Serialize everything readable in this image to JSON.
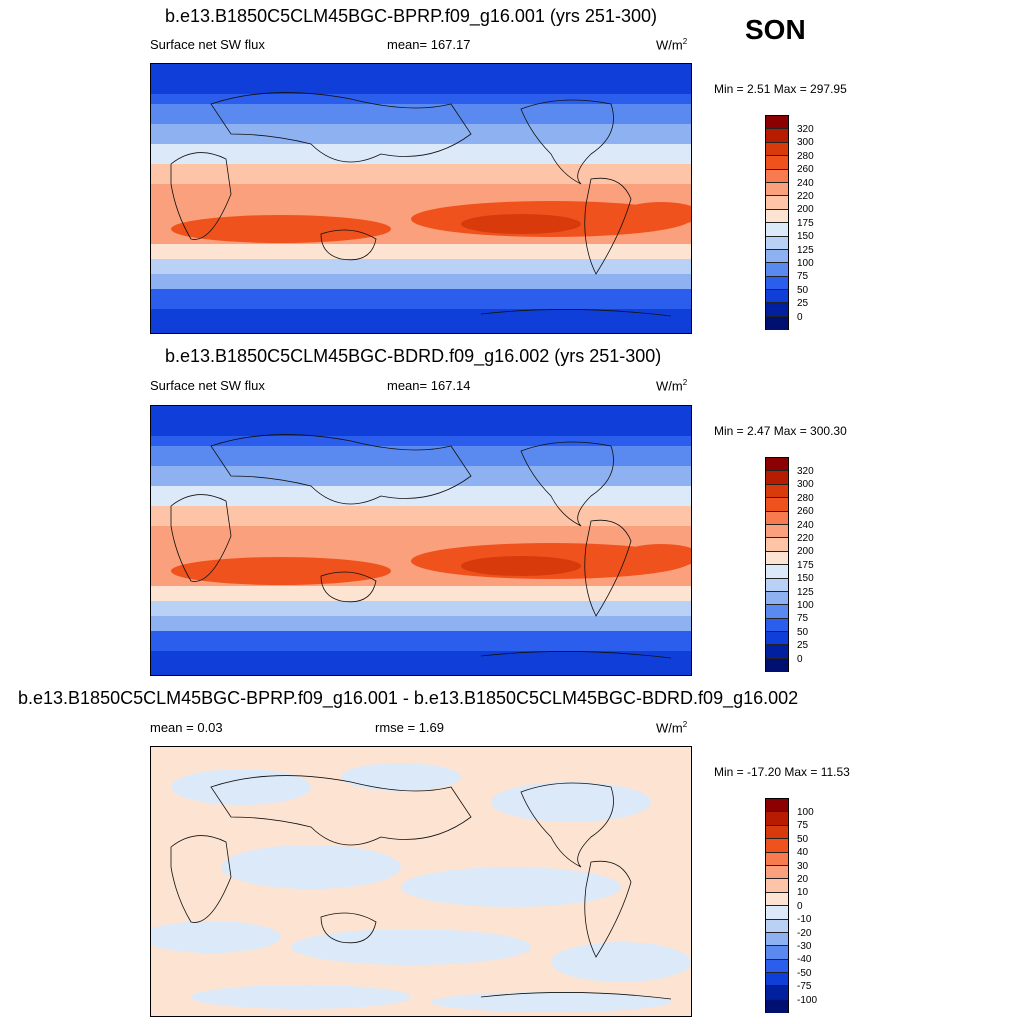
{
  "season": "SON",
  "panels": [
    {
      "title": "b.e13.B1850C5CLM45BGC-BPRP.f09_g16.001 (yrs 251-300)",
      "left_label": "Surface net SW flux",
      "center_label": "mean= 167.17",
      "units": "W/m",
      "units_sup": "2",
      "minmax": "Min =   2.51 Max = 297.95",
      "colorbar_labels": [
        "320",
        "300",
        "280",
        "260",
        "240",
        "220",
        "200",
        "175",
        "150",
        "125",
        "100",
        "75",
        "50",
        "25",
        "0"
      ]
    },
    {
      "title": "b.e13.B1850C5CLM45BGC-BDRD.f09_g16.002 (yrs 251-300)",
      "left_label": "Surface net SW flux",
      "center_label": "mean= 167.14",
      "units": "W/m",
      "units_sup": "2",
      "minmax": "Min =   2.47 Max = 300.30",
      "colorbar_labels": [
        "320",
        "300",
        "280",
        "260",
        "240",
        "220",
        "200",
        "175",
        "150",
        "125",
        "100",
        "75",
        "50",
        "25",
        "0"
      ]
    },
    {
      "title": "b.e13.B1850C5CLM45BGC-BPRP.f09_g16.001 - b.e13.B1850C5CLM45BGC-BDRD.f09_g16.002",
      "left_label": "mean =   0.03",
      "center_label": "rmse =   1.69",
      "units": "W/m",
      "units_sup": "2",
      "minmax": "Min = -17.20 Max =  11.53",
      "colorbar_labels": [
        "100",
        "75",
        "50",
        "40",
        "30",
        "20",
        "10",
        "0",
        "-10",
        "-20",
        "-30",
        "-40",
        "-50",
        "-75",
        "-100"
      ]
    }
  ],
  "colors": {
    "colorbar": [
      "#8b0000",
      "#b71c00",
      "#d83a0c",
      "#f0521e",
      "#f77b4f",
      "#fba07c",
      "#fdc4a7",
      "#fde4d2",
      "#dbe9f9",
      "#b9d1f5",
      "#8eb2f1",
      "#5a8af0",
      "#2c5eed",
      "#0f3fd8",
      "#00209f",
      "#001070"
    ]
  }
}
